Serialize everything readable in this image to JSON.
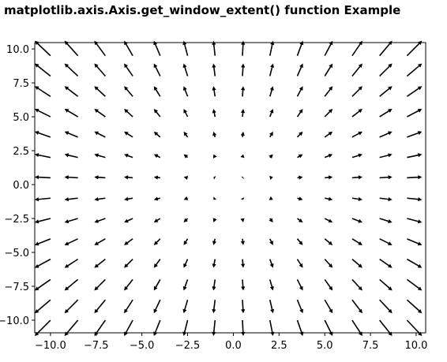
{
  "chart_data": {
    "type": "quiver",
    "title": "matplotlib.axis.Axis.get_window_extent() function Example",
    "color": "#000000",
    "x": [
      -10,
      -8.5,
      -7,
      -5.5,
      -4,
      -2.5,
      -1,
      0.5,
      2,
      3.5,
      5,
      6.5,
      8,
      9.5
    ],
    "y": [
      -10,
      -8.5,
      -7,
      -5.5,
      -4,
      -2.5,
      -1,
      0.5,
      2,
      3.5,
      5,
      6.5,
      8,
      9.5
    ],
    "u": [
      [
        -10,
        -8.5,
        -7,
        -5.5,
        -4,
        -2.5,
        -1,
        0.5,
        2,
        3.5,
        5,
        6.5,
        8,
        9.5
      ],
      [
        -10,
        -8.5,
        -7,
        -5.5,
        -4,
        -2.5,
        -1,
        0.5,
        2,
        3.5,
        5,
        6.5,
        8,
        9.5
      ],
      [
        -10,
        -8.5,
        -7,
        -5.5,
        -4,
        -2.5,
        -1,
        0.5,
        2,
        3.5,
        5,
        6.5,
        8,
        9.5
      ],
      [
        -10,
        -8.5,
        -7,
        -5.5,
        -4,
        -2.5,
        -1,
        0.5,
        2,
        3.5,
        5,
        6.5,
        8,
        9.5
      ],
      [
        -10,
        -8.5,
        -7,
        -5.5,
        -4,
        -2.5,
        -1,
        0.5,
        2,
        3.5,
        5,
        6.5,
        8,
        9.5
      ],
      [
        -10,
        -8.5,
        -7,
        -5.5,
        -4,
        -2.5,
        -1,
        0.5,
        2,
        3.5,
        5,
        6.5,
        8,
        9.5
      ],
      [
        -10,
        -8.5,
        -7,
        -5.5,
        -4,
        -2.5,
        -1,
        0.5,
        2,
        3.5,
        5,
        6.5,
        8,
        9.5
      ],
      [
        -10,
        -8.5,
        -7,
        -5.5,
        -4,
        -2.5,
        -1,
        0.5,
        2,
        3.5,
        5,
        6.5,
        8,
        9.5
      ],
      [
        -10,
        -8.5,
        -7,
        -5.5,
        -4,
        -2.5,
        -1,
        0.5,
        2,
        3.5,
        5,
        6.5,
        8,
        9.5
      ],
      [
        -10,
        -8.5,
        -7,
        -5.5,
        -4,
        -2.5,
        -1,
        0.5,
        2,
        3.5,
        5,
        6.5,
        8,
        9.5
      ],
      [
        -10,
        -8.5,
        -7,
        -5.5,
        -4,
        -2.5,
        -1,
        0.5,
        2,
        3.5,
        5,
        6.5,
        8,
        9.5
      ],
      [
        -10,
        -8.5,
        -7,
        -5.5,
        -4,
        -2.5,
        -1,
        0.5,
        2,
        3.5,
        5,
        6.5,
        8,
        9.5
      ],
      [
        -10,
        -8.5,
        -7,
        -5.5,
        -4,
        -2.5,
        -1,
        0.5,
        2,
        3.5,
        5,
        6.5,
        8,
        9.5
      ],
      [
        -10,
        -8.5,
        -7,
        -5.5,
        -4,
        -2.5,
        -1,
        0.5,
        2,
        3.5,
        5,
        6.5,
        8,
        9.5
      ]
    ],
    "v": [
      [
        -10,
        -10,
        -10,
        -10,
        -10,
        -10,
        -10,
        -10,
        -10,
        -10,
        -10,
        -10,
        -10,
        -10
      ],
      [
        -8.5,
        -8.5,
        -8.5,
        -8.5,
        -8.5,
        -8.5,
        -8.5,
        -8.5,
        -8.5,
        -8.5,
        -8.5,
        -8.5,
        -8.5,
        -8.5
      ],
      [
        -7,
        -7,
        -7,
        -7,
        -7,
        -7,
        -7,
        -7,
        -7,
        -7,
        -7,
        -7,
        -7,
        -7
      ],
      [
        -5.5,
        -5.5,
        -5.5,
        -5.5,
        -5.5,
        -5.5,
        -5.5,
        -5.5,
        -5.5,
        -5.5,
        -5.5,
        -5.5,
        -5.5,
        -5.5
      ],
      [
        -4,
        -4,
        -4,
        -4,
        -4,
        -4,
        -4,
        -4,
        -4,
        -4,
        -4,
        -4,
        -4,
        -4
      ],
      [
        -2.5,
        -2.5,
        -2.5,
        -2.5,
        -2.5,
        -2.5,
        -2.5,
        -2.5,
        -2.5,
        -2.5,
        -2.5,
        -2.5,
        -2.5,
        -2.5
      ],
      [
        -1,
        -1,
        -1,
        -1,
        -1,
        -1,
        -1,
        -1,
        -1,
        -1,
        -1,
        -1,
        -1,
        -1
      ],
      [
        0.5,
        0.5,
        0.5,
        0.5,
        0.5,
        0.5,
        0.5,
        0.5,
        0.5,
        0.5,
        0.5,
        0.5,
        0.5,
        0.5
      ],
      [
        2,
        2,
        2,
        2,
        2,
        2,
        2,
        2,
        2,
        2,
        2,
        2,
        2,
        2
      ],
      [
        3.5,
        3.5,
        3.5,
        3.5,
        3.5,
        3.5,
        3.5,
        3.5,
        3.5,
        3.5,
        3.5,
        3.5,
        3.5,
        3.5
      ],
      [
        5,
        5,
        5,
        5,
        5,
        5,
        5,
        5,
        5,
        5,
        5,
        5,
        5,
        5
      ],
      [
        6.5,
        6.5,
        6.5,
        6.5,
        6.5,
        6.5,
        6.5,
        6.5,
        6.5,
        6.5,
        6.5,
        6.5,
        6.5,
        6.5
      ],
      [
        8,
        8,
        8,
        8,
        8,
        8,
        8,
        8,
        8,
        8,
        8,
        8,
        8,
        8
      ],
      [
        9.5,
        9.5,
        9.5,
        9.5,
        9.5,
        9.5,
        9.5,
        9.5,
        9.5,
        9.5,
        9.5,
        9.5,
        9.5,
        9.5
      ]
    ],
    "xlim": [
      -10.86,
      10.52
    ],
    "ylim": [
      -10.93,
      10.47
    ],
    "xticks": [
      {
        "value": -10,
        "label": "−10.0"
      },
      {
        "value": -7.5,
        "label": "−7.5"
      },
      {
        "value": -5,
        "label": "−5.0"
      },
      {
        "value": -2.5,
        "label": "−2.5"
      },
      {
        "value": 0,
        "label": "0.0"
      },
      {
        "value": 2.5,
        "label": "2.5"
      },
      {
        "value": 5,
        "label": "5.0"
      },
      {
        "value": 7.5,
        "label": "7.5"
      },
      {
        "value": 10,
        "label": "10.0"
      }
    ],
    "yticks": [
      {
        "value": -10,
        "label": "−10.0"
      },
      {
        "value": -7.5,
        "label": "−7.5"
      },
      {
        "value": -5,
        "label": "−5.0"
      },
      {
        "value": -2.5,
        "label": "−2.5"
      },
      {
        "value": 0,
        "label": "0.0"
      },
      {
        "value": 2.5,
        "label": "2.5"
      },
      {
        "value": 5,
        "label": "5.0"
      },
      {
        "value": 7.5,
        "label": "7.5"
      },
      {
        "value": 10,
        "label": "10.0"
      }
    ]
  }
}
